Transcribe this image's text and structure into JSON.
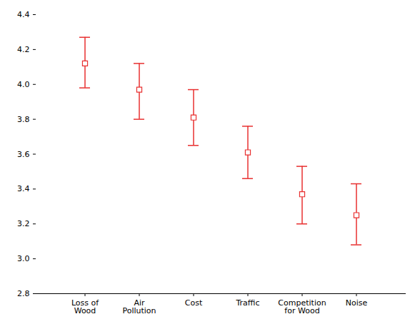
{
  "chart_data": {
    "type": "errorbar",
    "categories": [
      "Loss of\nWood",
      "Air\nPollution",
      "Cost",
      "Traffic",
      "Competition\nfor Wood",
      "Noise"
    ],
    "values": [
      4.12,
      3.97,
      3.81,
      3.61,
      3.37,
      3.25
    ],
    "lower": [
      3.98,
      3.8,
      3.65,
      3.46,
      3.2,
      3.08
    ],
    "upper": [
      4.27,
      4.12,
      3.97,
      3.76,
      3.53,
      3.43
    ],
    "color": "#e83030",
    "marker": "square",
    "ylim": [
      2.8,
      4.4
    ],
    "yticks": [
      2.8,
      {
        "value": 3,
        "label": "3.0"
      },
      3.2,
      3.4,
      3.6,
      3.8,
      {
        "value": 4,
        "label": "4.0"
      },
      4.2,
      4.4
    ],
    "grid": false
  }
}
